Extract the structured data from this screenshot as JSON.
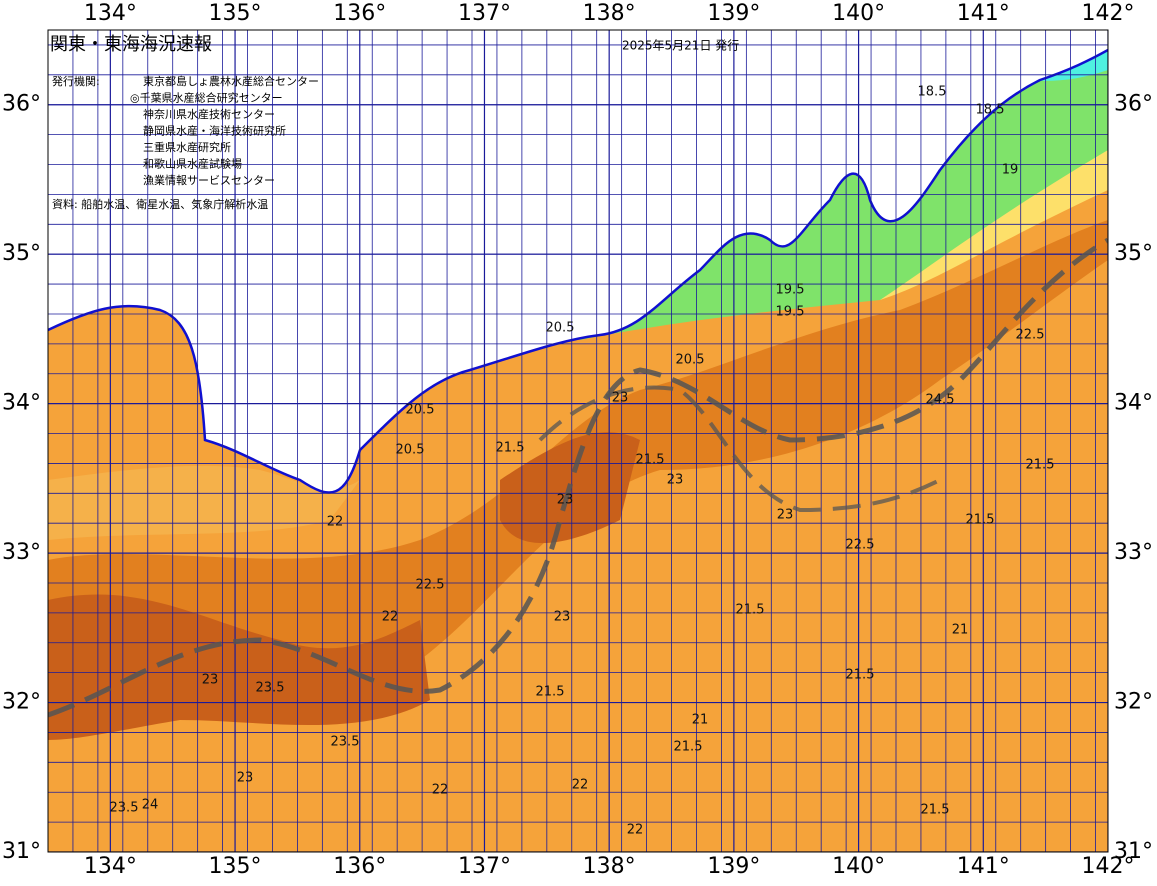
{
  "map": {
    "title": "関東・東海海況速報",
    "date": "2025年5月21日 発行",
    "issuer_label": "発行機関:",
    "issuers": [
      "東京都島しょ農林水産総合センター",
      "◎千葉県水産総合研究センター",
      "神奈川県水産技術センター",
      "静岡県水産・海洋技術研究所",
      "三重県水産研究所",
      "和歌山県水産試験場",
      "漁業情報サービスセンター"
    ],
    "source": "資料: 船舶水温、衛星水温、気象庁解析水温",
    "xlim": [
      133.5,
      142
    ],
    "ylim": [
      31,
      36.5
    ],
    "grid_step": 0.2,
    "xticks": [
      {
        "value": 134,
        "label": "134°"
      },
      {
        "value": 135,
        "label": "135°"
      },
      {
        "value": 136,
        "label": "136°"
      },
      {
        "value": 137,
        "label": "137°"
      },
      {
        "value": 138,
        "label": "138°"
      },
      {
        "value": 139,
        "label": "139°"
      },
      {
        "value": 140,
        "label": "140°"
      },
      {
        "value": 141,
        "label": "141°"
      },
      {
        "value": 142,
        "label": "142°"
      }
    ],
    "yticks": [
      {
        "value": 31,
        "label": "31°"
      },
      {
        "value": 32,
        "label": "32°"
      },
      {
        "value": 33,
        "label": "33°"
      },
      {
        "value": 34,
        "label": "34°"
      },
      {
        "value": 35,
        "label": "35°"
      },
      {
        "value": 36,
        "label": "36°"
      }
    ],
    "contour_labels": [
      18.5,
      18.5,
      19,
      19.5,
      19.5,
      20.5,
      20.5,
      20.5,
      21.5,
      21.5,
      21.5,
      21.5,
      21.5,
      21.5,
      21.5,
      22,
      22,
      22,
      22,
      22.5,
      22.5,
      22.5,
      23,
      23,
      23,
      23,
      23,
      23,
      23.5,
      23.5,
      23.5,
      24,
      24.5,
      21,
      21,
      20.5,
      21.5,
      22,
      23,
      21.5
    ]
  }
}
